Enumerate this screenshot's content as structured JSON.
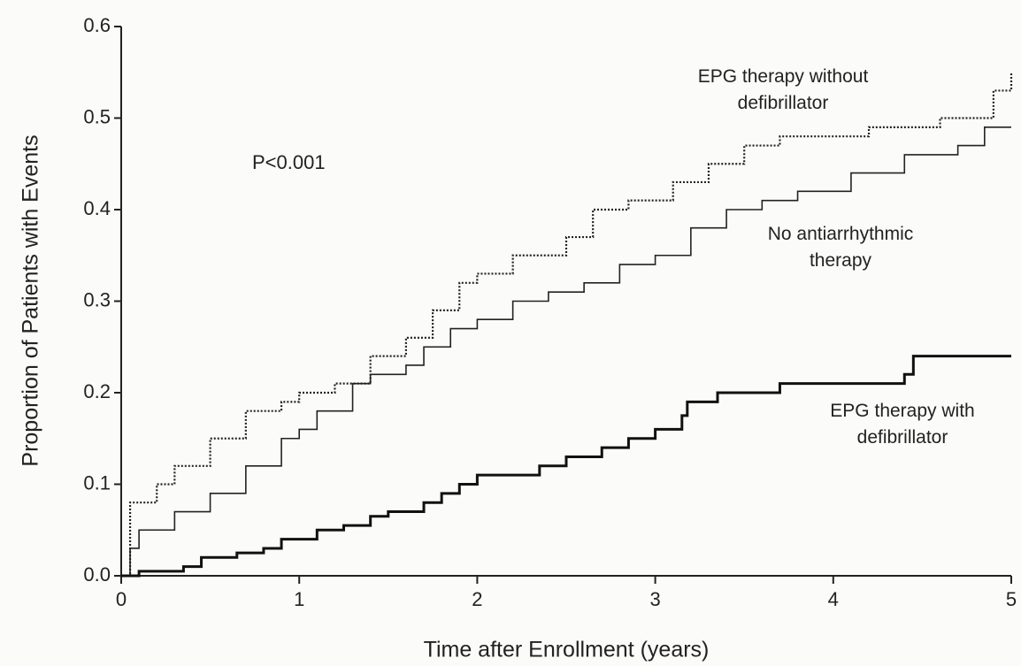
{
  "chart_data": {
    "type": "step",
    "x_label": "Time after Enrollment (years)",
    "y_label": "Proportion of Patients with Events",
    "annotation": "P<0.001",
    "xlim": [
      0,
      5
    ],
    "xticks": [
      0,
      1,
      2,
      3,
      4,
      5
    ],
    "ylim": [
      0,
      0.6
    ],
    "yticks": [
      {
        "value": 0,
        "label": "0.0"
      },
      0.1,
      0.2,
      0.3,
      0.4,
      0.5,
      0.6
    ],
    "series": [
      {
        "name": "EPG therapy without defibrillator",
        "color": "#222222",
        "dash": "dotted",
        "x": [
          0,
          0.05,
          0.2,
          0.3,
          0.5,
          0.7,
          0.9,
          1.0,
          1.2,
          1.4,
          1.6,
          1.75,
          1.9,
          2.0,
          2.2,
          2.5,
          2.65,
          2.85,
          3.1,
          3.3,
          3.5,
          3.7,
          4.2,
          4.6,
          4.9,
          5.0
        ],
        "values": [
          0,
          0.08,
          0.1,
          0.12,
          0.15,
          0.18,
          0.19,
          0.2,
          0.21,
          0.24,
          0.26,
          0.29,
          0.32,
          0.33,
          0.35,
          0.37,
          0.4,
          0.41,
          0.43,
          0.45,
          0.47,
          0.48,
          0.49,
          0.5,
          0.53,
          0.55
        ]
      },
      {
        "name": "No antiarrhythmic therapy",
        "color": "#222222",
        "dash": "solid",
        "x": [
          0,
          0.05,
          0.1,
          0.3,
          0.5,
          0.7,
          0.9,
          1.0,
          1.1,
          1.3,
          1.4,
          1.6,
          1.7,
          1.85,
          2.0,
          2.2,
          2.4,
          2.6,
          2.8,
          3.0,
          3.2,
          3.4,
          3.6,
          3.8,
          4.1,
          4.4,
          4.7,
          4.85,
          5.0
        ],
        "values": [
          0,
          0.03,
          0.05,
          0.07,
          0.09,
          0.12,
          0.15,
          0.16,
          0.18,
          0.21,
          0.22,
          0.23,
          0.25,
          0.27,
          0.28,
          0.3,
          0.31,
          0.32,
          0.34,
          0.35,
          0.38,
          0.4,
          0.41,
          0.42,
          0.44,
          0.46,
          0.47,
          0.49,
          0.49
        ]
      },
      {
        "name": "EPG therapy with defibrillator",
        "color": "#111111",
        "dash": "thick",
        "x": [
          0,
          0.1,
          0.35,
          0.45,
          0.65,
          0.8,
          0.9,
          1.1,
          1.25,
          1.4,
          1.5,
          1.7,
          1.8,
          1.9,
          2.0,
          2.25,
          2.35,
          2.5,
          2.7,
          2.85,
          3.0,
          3.15,
          3.18,
          3.35,
          3.7,
          4.1,
          4.4,
          4.45,
          5.0
        ],
        "values": [
          0,
          0.005,
          0.01,
          0.02,
          0.025,
          0.03,
          0.04,
          0.05,
          0.055,
          0.065,
          0.07,
          0.08,
          0.09,
          0.1,
          0.11,
          0.11,
          0.12,
          0.13,
          0.14,
          0.15,
          0.16,
          0.175,
          0.19,
          0.2,
          0.21,
          0.21,
          0.22,
          0.24,
          0.24
        ]
      }
    ]
  }
}
